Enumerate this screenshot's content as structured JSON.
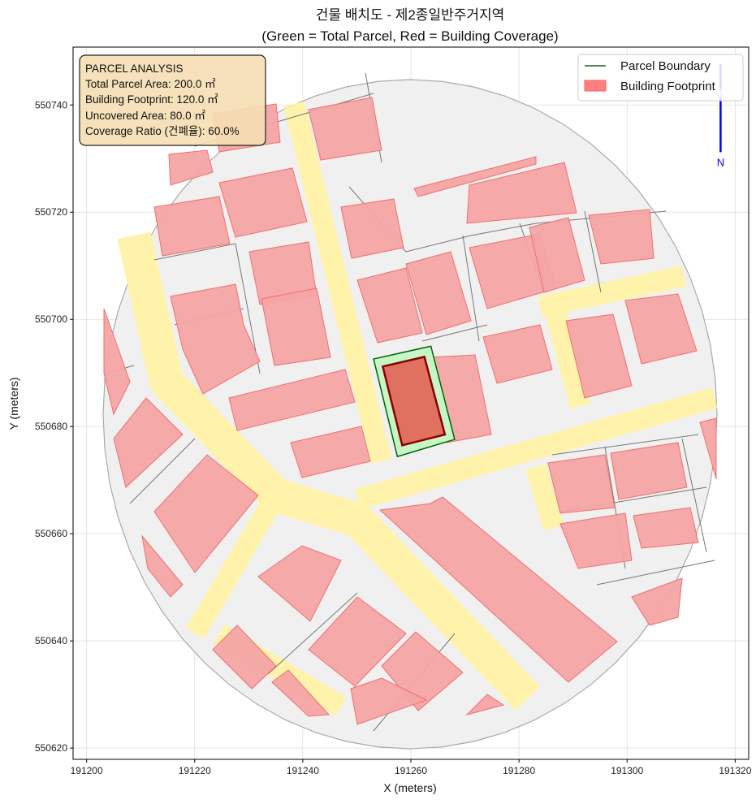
{
  "chart_data": {
    "type": "map",
    "title": "건물 배치도 - 제2종일반주거지역",
    "subtitle": "(Green = Total Parcel, Red = Building Coverage)",
    "xlabel": "X (meters)",
    "ylabel": "Y (meters)",
    "xlim": [
      191197.5,
      191322.5
    ],
    "ylim": [
      550617.9,
      550750.8
    ],
    "xticks": [
      "191200",
      "191220",
      "191240",
      "191260",
      "191280",
      "191300",
      "191320"
    ],
    "yticks": [
      "550620",
      "550640",
      "550660",
      "550680",
      "550700",
      "550720",
      "550740"
    ],
    "grid": true,
    "legend_position": "top-right",
    "legend": [
      {
        "label": "Parcel Boundary",
        "kind": "line",
        "color": "#1a5c1a"
      },
      {
        "label": "Building Footprint",
        "kind": "patch",
        "color": "#ff7f7f"
      }
    ],
    "target_parcel": {
      "fill": "#c6f5c6",
      "edge": "#006400",
      "coords": [
        [
          191253.1,
          550692.6
        ],
        [
          191263.7,
          550695.0
        ],
        [
          191268.1,
          550677.6
        ],
        [
          191257.5,
          550674.4
        ]
      ]
    },
    "target_building": {
      "fill": "#e07060",
      "edge": "#8b0000",
      "coords": [
        [
          191254.8,
          550691.2
        ],
        [
          191262.5,
          550693.0
        ],
        [
          191266.3,
          550678.5
        ],
        [
          191258.4,
          550676.5
        ]
      ]
    },
    "north_arrow": {
      "label": "N",
      "color": "#0000ff",
      "base": [
        191317.3,
        550731.2
      ],
      "tip": [
        191317.3,
        550748.5
      ]
    },
    "info_box": {
      "lines": [
        "PARCEL ANALYSIS",
        "Total Parcel Area: 200.0 ㎡",
        "Building Footprint: 120.0 ㎡",
        "Uncovered Area: 80.0 ㎡",
        "Coverage Ratio (건폐율): 60.0%"
      ],
      "fill": "#f5deb3"
    },
    "colors": {
      "road": "#fff2a8",
      "parcel_bg": "#f0f0f0",
      "context_building": "#f4a4a4"
    }
  }
}
